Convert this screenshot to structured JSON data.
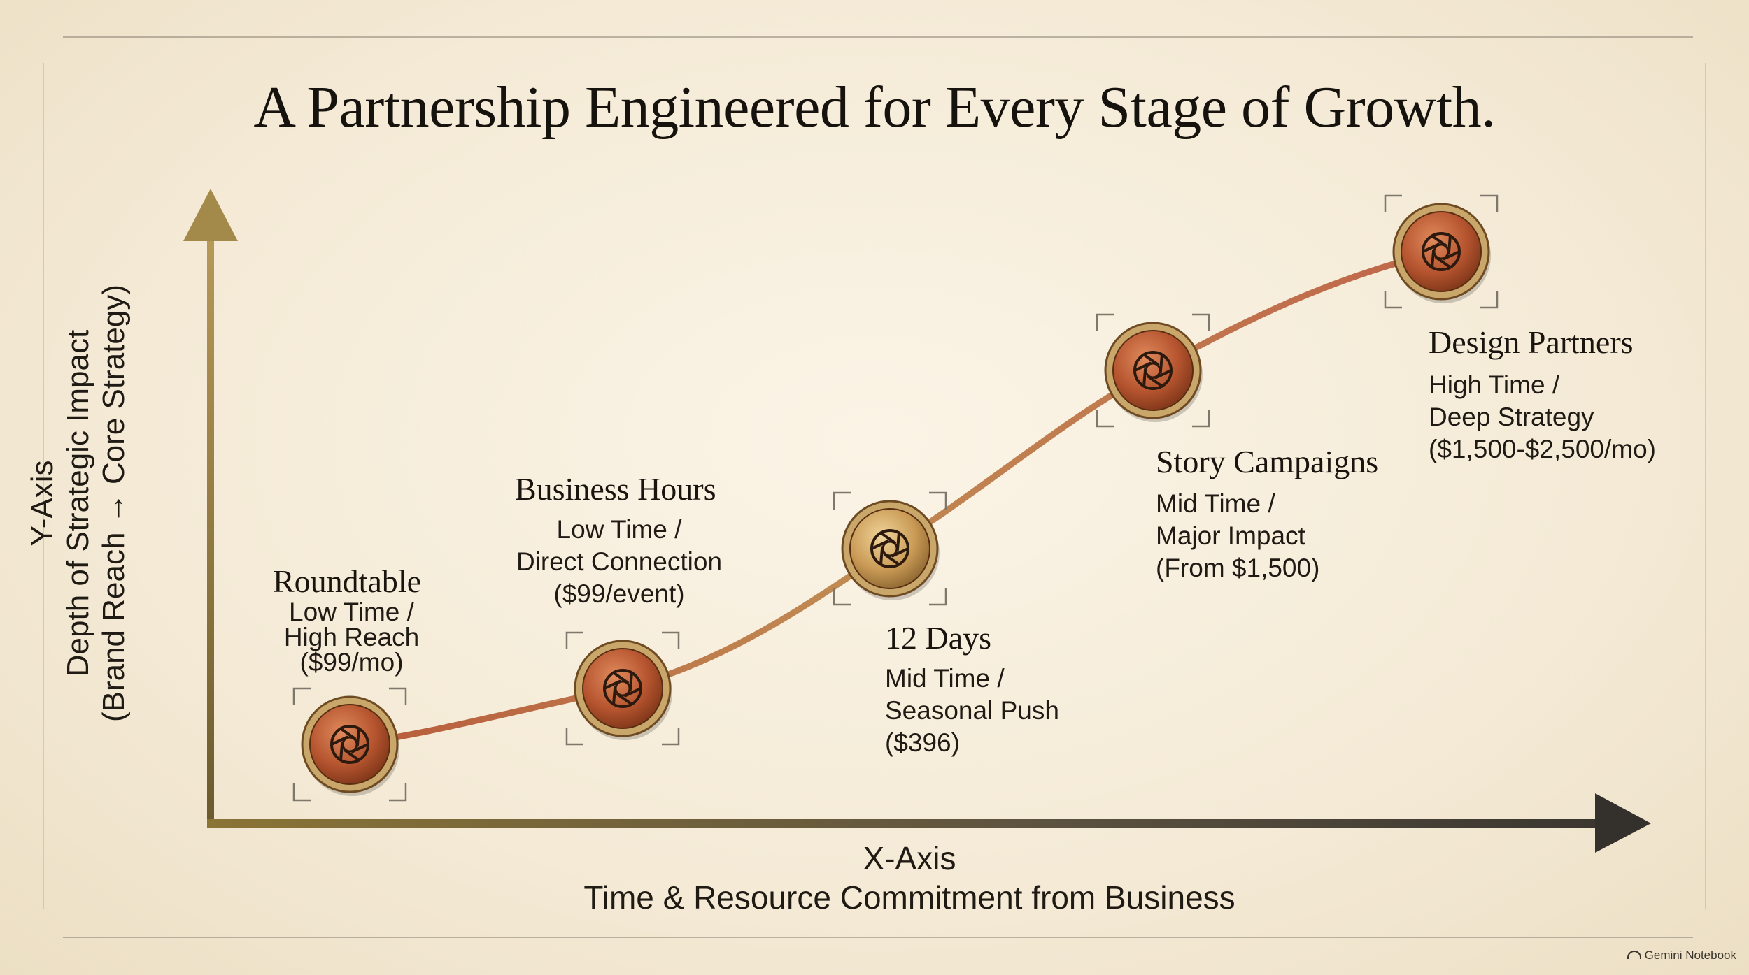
{
  "title": "A Partnership Engineered for Every Stage of Growth.",
  "y_axis": {
    "line1": "Y-Axis",
    "line2": "Depth of Strategic Impact",
    "line3": "(Brand Reach → Core Strategy)"
  },
  "x_axis": {
    "line1": "X-Axis",
    "line2": "Time & Resource Commitment from Business"
  },
  "stages": [
    {
      "name": "Roundtable",
      "desc": [
        "Low Time /",
        "High Reach",
        "($99/mo)"
      ]
    },
    {
      "name": "Business Hours",
      "desc": [
        "Low Time /",
        "Direct Connection",
        "($99/event)"
      ]
    },
    {
      "name": "12 Days",
      "desc": [
        "Mid Time /",
        "Seasonal Push",
        "($396)"
      ]
    },
    {
      "name": "Story Campaigns",
      "desc": [
        "Mid Time /",
        "Major Impact",
        "(From $1,500)"
      ]
    },
    {
      "name": "Design Partners",
      "desc": [
        "High Time /",
        "Deep Strategy",
        "($1,500-$2,500/mo)"
      ]
    }
  ],
  "node_icon": "camera-aperture-icon",
  "colors": {
    "curve": "#c0694a",
    "node_fill": "#c0643d",
    "node_ring": "#d8b27a",
    "axis": "#7a6a3a"
  },
  "watermark": "Gemini Notebook"
}
